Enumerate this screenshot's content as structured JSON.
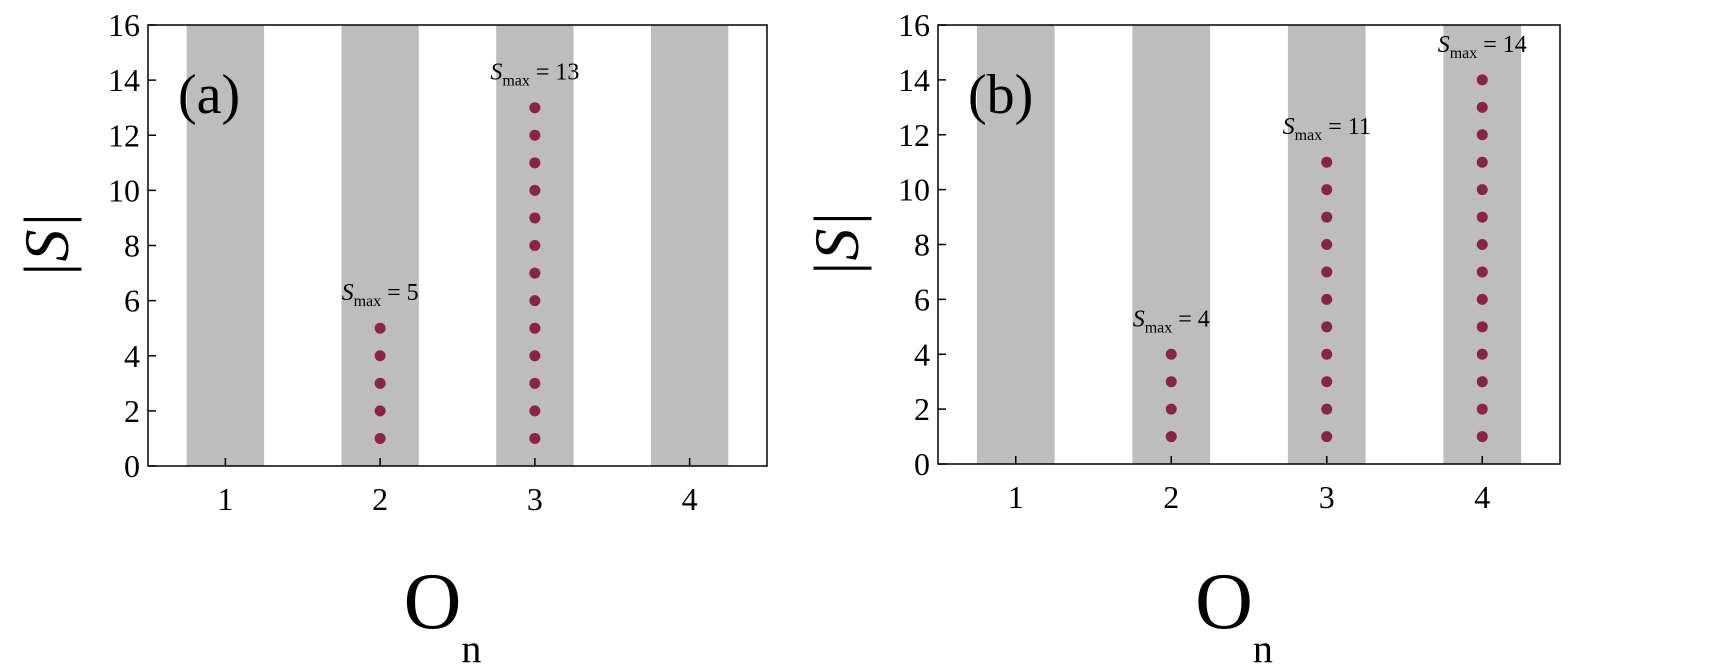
{
  "chart_data": [
    {
      "type": "scatter",
      "label": "(a)",
      "xlabel": "O",
      "xlabel_sub": "n",
      "ylabel": "|S|",
      "xlim": [
        0.5,
        4.5
      ],
      "xticks": [
        1,
        2,
        3,
        4
      ],
      "ylim": [
        0,
        16
      ],
      "yticks": [
        0,
        2,
        4,
        6,
        8,
        10,
        12,
        14,
        16
      ],
      "band_color": "#bdbdbd",
      "series": [
        {
          "color": "#8b2346",
          "x": [
            2,
            2,
            2,
            2,
            2
          ],
          "values": [
            1,
            2,
            3,
            4,
            5
          ]
        },
        {
          "color": "#8b2346",
          "x": [
            3,
            3,
            3,
            3,
            3,
            3,
            3,
            3,
            3,
            3,
            3,
            3,
            3
          ],
          "values": [
            1,
            2,
            3,
            4,
            5,
            6,
            7,
            8,
            9,
            10,
            11,
            12,
            13
          ]
        }
      ],
      "annotations": [
        [
          "S",
          "max",
          "= 5"
        ],
        [
          "S",
          "max",
          "= 13"
        ]
      ]
    },
    {
      "type": "scatter",
      "label": "(b)",
      "xlabel": "O",
      "xlabel_sub": "n",
      "ylabel": "|S|",
      "xlim": [
        0.5,
        4.5
      ],
      "xticks": [
        1,
        2,
        3,
        4
      ],
      "ylim": [
        0,
        16
      ],
      "yticks": [
        0,
        2,
        4,
        6,
        8,
        10,
        12,
        14,
        16
      ],
      "band_color": "#bdbdbd",
      "series": [
        {
          "color": "#8b2346",
          "x": [
            2,
            2,
            2,
            2
          ],
          "values": [
            1,
            2,
            3,
            4
          ]
        },
        {
          "color": "#8b2346",
          "x": [
            3,
            3,
            3,
            3,
            3,
            3,
            3,
            3,
            3,
            3,
            3
          ],
          "values": [
            1,
            2,
            3,
            4,
            5,
            6,
            7,
            8,
            9,
            10,
            11
          ]
        },
        {
          "color": "#8b2346",
          "x": [
            4,
            4,
            4,
            4,
            4,
            4,
            4,
            4,
            4,
            4,
            4,
            4,
            4,
            4
          ],
          "values": [
            1,
            2,
            3,
            4,
            5,
            6,
            7,
            8,
            9,
            10,
            11,
            12,
            13,
            14
          ]
        }
      ],
      "annotations": [
        [
          "S",
          "max",
          "= 4"
        ],
        [
          "S",
          "max",
          "= 11"
        ],
        [
          "S",
          "max",
          "= 14"
        ]
      ]
    }
  ]
}
